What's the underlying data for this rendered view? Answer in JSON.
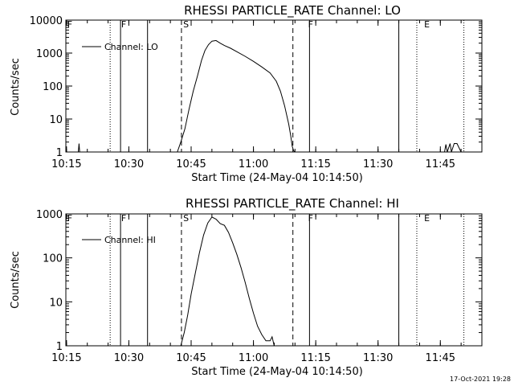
{
  "chart_data": [
    {
      "type": "line",
      "title": "RHESSI PARTICLE_RATE Channel: LO",
      "xlabel": "Start Time (24-May-04 10:14:50)",
      "ylabel": "Counts/sec",
      "yscale": "log",
      "ylim": [
        1,
        10000
      ],
      "xlim": [
        "10:14:50",
        "11:55:00"
      ],
      "grid": false,
      "legend_position": "top-left",
      "x_ticks": [
        "10:15",
        "10:30",
        "10:45",
        "11:00",
        "11:15",
        "11:30",
        "11:45"
      ],
      "y_ticks": [
        "1",
        "10",
        "100",
        "1000",
        "10000"
      ],
      "series": [
        {
          "name": "Channel: LO",
          "x": [
            "10:17:50",
            "10:18:00",
            "10:18:10",
            "10:41:40",
            "10:42:30",
            "10:43:30",
            "10:44:30",
            "10:45:30",
            "10:46:30",
            "10:47:30",
            "10:48:20",
            "10:49:10",
            "10:50:00",
            "10:51:00",
            "10:52:00",
            "10:53:00",
            "10:54:30",
            "10:56:00",
            "10:58:00",
            "11:00:00",
            "11:02:00",
            "11:04:00",
            "11:05:30",
            "11:06:30",
            "11:07:30",
            "11:08:30",
            "11:09:00",
            "11:09:20",
            "11:09:40",
            "11:10:00",
            "11:46:00",
            "11:46:20",
            "11:46:40",
            "11:47:20",
            "11:47:40",
            "11:48:20",
            "11:49:00",
            "11:50:00"
          ],
          "values": [
            1,
            1.8,
            1,
            1,
            2,
            5,
            20,
            70,
            200,
            600,
            1200,
            1800,
            2300,
            2400,
            2000,
            1700,
            1400,
            1100,
            800,
            560,
            380,
            250,
            140,
            70,
            25,
            7,
            3,
            1.5,
            1.1,
            1,
            1,
            1.7,
            1,
            1.8,
            1,
            1.8,
            1.8,
            1
          ]
        }
      ],
      "markers": [
        {
          "label": "F",
          "time": "10:15:00"
        },
        {
          "label": "F",
          "time": "10:28:00"
        },
        {
          "label": "S",
          "time": "10:43:00"
        },
        {
          "label": "F",
          "time": "11:13:00"
        },
        {
          "label": "E",
          "time": "11:41:00"
        }
      ]
    },
    {
      "type": "line",
      "title": "RHESSI PARTICLE_RATE Channel: HI",
      "xlabel": "Start Time (24-May-04 10:14:50)",
      "ylabel": "Counts/sec",
      "yscale": "log",
      "ylim": [
        1,
        1000
      ],
      "xlim": [
        "10:14:50",
        "11:55:00"
      ],
      "grid": false,
      "legend_position": "top-left",
      "x_ticks": [
        "10:15",
        "10:30",
        "10:45",
        "11:00",
        "11:15",
        "11:30",
        "11:45"
      ],
      "y_ticks": [
        "1",
        "10",
        "100",
        "1000"
      ],
      "series": [
        {
          "name": "Channel: HI",
          "x": [
            "10:42:30",
            "10:43:20",
            "10:44:10",
            "10:45:00",
            "10:46:00",
            "10:47:00",
            "10:48:00",
            "10:49:00",
            "10:50:00",
            "10:51:00",
            "10:52:00",
            "10:53:00",
            "10:54:00",
            "10:55:00",
            "10:56:00",
            "10:57:00",
            "10:58:00",
            "10:59:00",
            "11:00:00",
            "11:01:00",
            "11:02:00",
            "11:03:00",
            "11:04:00",
            "11:04:30",
            "11:05:00"
          ],
          "values": [
            1,
            2,
            5,
            15,
            45,
            130,
            330,
            620,
            850,
            760,
            600,
            550,
            380,
            220,
            120,
            60,
            28,
            12,
            5.5,
            2.8,
            1.8,
            1.3,
            1.3,
            1.6,
            1
          ]
        }
      ],
      "markers": [
        {
          "label": "F",
          "time": "10:15:00"
        },
        {
          "label": "F",
          "time": "10:28:00"
        },
        {
          "label": "S",
          "time": "10:43:00"
        },
        {
          "label": "F",
          "time": "11:13:00"
        },
        {
          "label": "E",
          "time": "11:41:00"
        }
      ]
    }
  ],
  "footer": {
    "timestamp": "17-Oct-2021 19:28"
  }
}
